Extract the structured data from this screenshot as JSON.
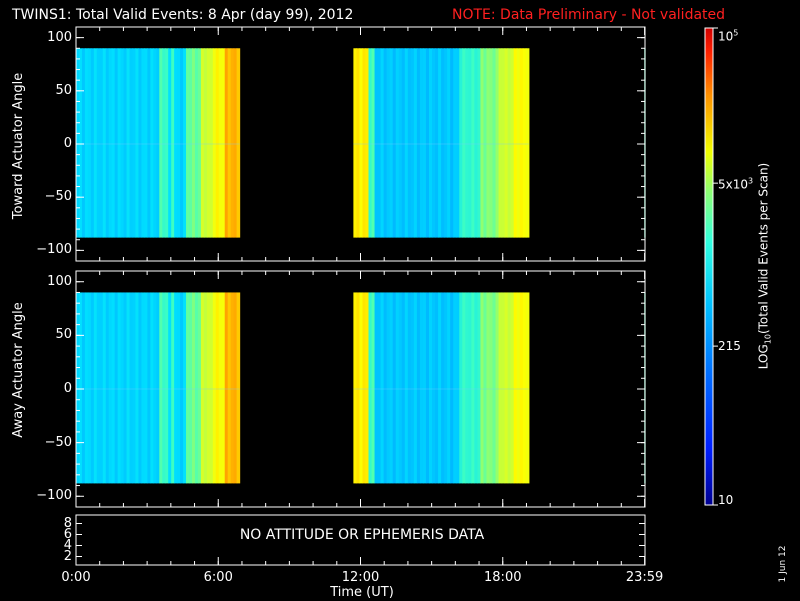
{
  "header": {
    "title": "TWINS1: Total Valid Events:  8 Apr (day  99), 2012",
    "note": "NOTE: Data Preliminary - Not validated",
    "note_color": "#ff2020"
  },
  "side_date": "1 Jun 12",
  "chart_data": [
    {
      "type": "heatmap",
      "panel": "top",
      "ylabel": "Toward Actuator Angle",
      "ylim": [
        -110,
        110
      ],
      "yticks": [
        100,
        50,
        0,
        -50,
        -100
      ],
      "ytick_labels": [
        "100",
        "50",
        "0",
        "−50",
        "−100"
      ],
      "xlim": [
        0,
        24
      ],
      "angle_range": [
        -88,
        90
      ],
      "data_blocks": [
        {
          "start_hour": 0.0,
          "end_hour": 6.9
        },
        {
          "start_hour": 11.7,
          "end_hour": 19.1
        },
        {
          "start_hour": 23.97,
          "end_hour": 24.0
        }
      ],
      "colorscale": "log"
    },
    {
      "type": "heatmap",
      "panel": "middle",
      "ylabel": "Away Actuator Angle",
      "ylim": [
        -110,
        110
      ],
      "yticks": [
        100,
        50,
        0,
        -50,
        -100
      ],
      "ytick_labels": [
        "100",
        "50",
        "0",
        "−50",
        "−100"
      ],
      "xlim": [
        0,
        24
      ],
      "angle_range": [
        -88,
        90
      ],
      "data_blocks": [
        {
          "start_hour": 0.0,
          "end_hour": 6.9
        },
        {
          "start_hour": 11.7,
          "end_hour": 19.1
        },
        {
          "start_hour": 23.97,
          "end_hour": 24.0
        }
      ],
      "colorscale": "log"
    },
    {
      "type": "line",
      "panel": "bottom",
      "yticks": [
        8,
        6,
        4,
        2
      ],
      "ytick_labels": [
        "8",
        "6",
        "4",
        "2"
      ],
      "message": "NO ATTITUDE OR EPHEMERIS DATA",
      "xlabel": "Time (UT)",
      "xticks": [
        0,
        6,
        12,
        18,
        23.983
      ],
      "xtick_labels": [
        "0:00",
        "6:00",
        "12:00",
        "18:00",
        "23:59"
      ]
    }
  ],
  "colorbar": {
    "title": "LOG",
    "title_sub": "10",
    "title_rest": "(Total Valid  Events per Scan)",
    "scale": "log",
    "range": [
      10,
      100000
    ],
    "ticks": [
      {
        "value": 100000,
        "base": "10",
        "exp": "5"
      },
      {
        "value": 5000,
        "base": "5x10",
        "exp": "3"
      },
      {
        "value": 215,
        "base": "215",
        "exp": ""
      },
      {
        "value": 10,
        "base": "10",
        "exp": ""
      }
    ],
    "colors": [
      "#0000a0",
      "#0030ff",
      "#0090ff",
      "#00e0ff",
      "#40ffc0",
      "#c0ff40",
      "#ffff00",
      "#ff9000",
      "#ff2000",
      "#c00000"
    ]
  }
}
